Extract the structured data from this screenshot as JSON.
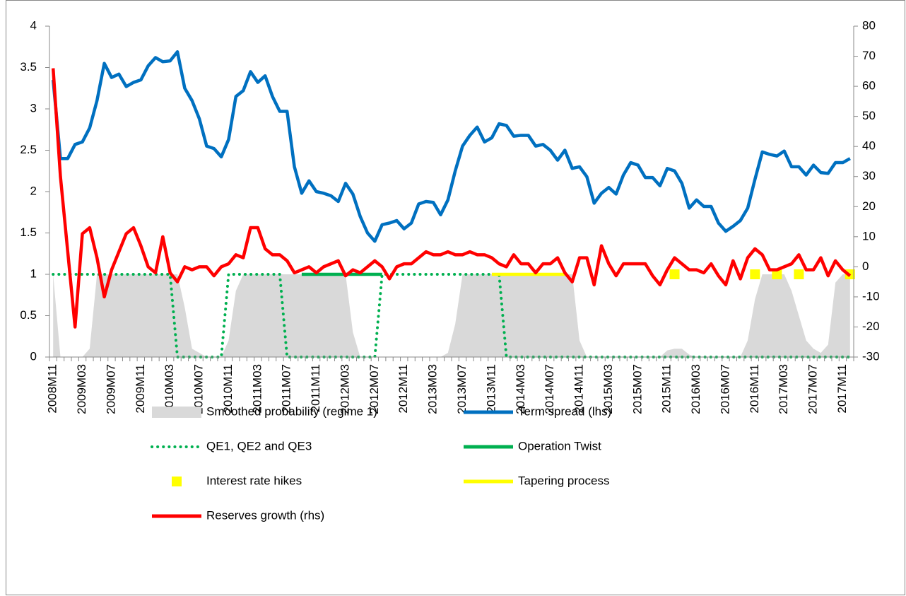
{
  "chart_data": {
    "type": "line",
    "categories": [
      "2008M11",
      null,
      null,
      null,
      "2009M03",
      null,
      null,
      null,
      "2009M07",
      null,
      null,
      null,
      "2009M11",
      null,
      null,
      null,
      "2010M03",
      null,
      null,
      null,
      "2010M07",
      null,
      null,
      null,
      "2010M11",
      null,
      null,
      null,
      "2011M03",
      null,
      null,
      null,
      "2011M07",
      null,
      null,
      null,
      "2011M11",
      null,
      null,
      null,
      "2012M03",
      null,
      null,
      null,
      "2012M07",
      null,
      null,
      null,
      "2012M11",
      null,
      null,
      null,
      "2013M03",
      null,
      null,
      null,
      "2013M07",
      null,
      null,
      null,
      "2013M11",
      null,
      null,
      null,
      "2014M03",
      null,
      null,
      null,
      "2014M07",
      null,
      null,
      null,
      "2014M11",
      null,
      null,
      null,
      "2015M03",
      null,
      null,
      null,
      "2015M07",
      null,
      null,
      null,
      "2015M11",
      null,
      null,
      null,
      "2016M03",
      null,
      null,
      null,
      "2016M07",
      null,
      null,
      null,
      "2016M11",
      null,
      null,
      null,
      "2017M03",
      null,
      null,
      null,
      "2017M07",
      null,
      null,
      null,
      "2017M11",
      null
    ],
    "ylim": [
      0,
      4
    ],
    "yticks": [
      0,
      0.5,
      1,
      1.5,
      2,
      2.5,
      3,
      3.5,
      4
    ],
    "y2lim": [
      -30,
      80
    ],
    "y2ticks": [
      -30,
      -20,
      -10,
      0,
      10,
      20,
      30,
      40,
      50,
      60,
      70,
      80
    ],
    "series": [
      {
        "name": "Smoothed probability (regime 1)",
        "kind": "area",
        "color": "#d9d9d9",
        "values": [
          1,
          0,
          0,
          0,
          0,
          0.1,
          1,
          1,
          1,
          1,
          1,
          1,
          1,
          1,
          1,
          1,
          1,
          1,
          0.6,
          0.1,
          0.05,
          0,
          0,
          0,
          0.2,
          0.8,
          1,
          1,
          1,
          1,
          1,
          1,
          1,
          1,
          1,
          1,
          1,
          1,
          1,
          1,
          1,
          0.3,
          0,
          0,
          0,
          0,
          0,
          0,
          0,
          0,
          0,
          0,
          0,
          0,
          0.05,
          0.4,
          1,
          1,
          1,
          1,
          1,
          1,
          1,
          1,
          1,
          1,
          1,
          1,
          1,
          1,
          1,
          1,
          0.2,
          0,
          0,
          0,
          0,
          0,
          0,
          0,
          0,
          0,
          0,
          0,
          0.08,
          0.1,
          0.1,
          0.03,
          0,
          0,
          0,
          0,
          0,
          0,
          0,
          0.2,
          0.7,
          1,
          1,
          1,
          1,
          0.8,
          0.5,
          0.2,
          0.1,
          0.05,
          0.15,
          0.9,
          1,
          1
        ]
      },
      {
        "name": "Term spread (lhs)",
        "kind": "line",
        "color": "#0070c0",
        "values": [
          3.35,
          2.4,
          2.4,
          2.57,
          2.6,
          2.77,
          3.1,
          3.55,
          3.38,
          3.42,
          3.27,
          3.32,
          3.35,
          3.52,
          3.62,
          3.57,
          3.58,
          3.69,
          3.25,
          3.1,
          2.88,
          2.55,
          2.52,
          2.42,
          2.63,
          3.15,
          3.22,
          3.45,
          3.32,
          3.4,
          3.15,
          2.97,
          2.97,
          2.3,
          1.98,
          2.13,
          2.0,
          1.98,
          1.95,
          1.88,
          2.1,
          1.97,
          1.7,
          1.5,
          1.4,
          1.6,
          1.62,
          1.65,
          1.55,
          1.62,
          1.85,
          1.88,
          1.87,
          1.72,
          1.9,
          2.25,
          2.55,
          2.68,
          2.78,
          2.6,
          2.65,
          2.82,
          2.8,
          2.67,
          2.68,
          2.68,
          2.55,
          2.57,
          2.5,
          2.38,
          2.5,
          2.28,
          2.3,
          2.18,
          1.86,
          1.98,
          2.05,
          1.97,
          2.2,
          2.35,
          2.32,
          2.17,
          2.17,
          2.07,
          2.28,
          2.25,
          2.1,
          1.8,
          1.9,
          1.82,
          1.82,
          1.62,
          1.52,
          1.58,
          1.65,
          1.8,
          2.15,
          2.48,
          2.45,
          2.43,
          2.49,
          2.3,
          2.3,
          2.2,
          2.32,
          2.23,
          2.22,
          2.35,
          2.35,
          2.4
        ]
      },
      {
        "name": "QE1, QE2 and QE3",
        "kind": "dotted",
        "color": "#00b050",
        "values": [
          1,
          1,
          1,
          1,
          1,
          1,
          1,
          1,
          1,
          1,
          1,
          1,
          1,
          1,
          1,
          1,
          1,
          0,
          0,
          0,
          0,
          0,
          0,
          0,
          1,
          1,
          1,
          1,
          1,
          1,
          1,
          1,
          0,
          0,
          0,
          0,
          0,
          0,
          0,
          0,
          0,
          0,
          0,
          0,
          0,
          1,
          1,
          1,
          1,
          1,
          1,
          1,
          1,
          1,
          1,
          1,
          1,
          1,
          1,
          1,
          1,
          1,
          0,
          0,
          0,
          0,
          0,
          0,
          0,
          0,
          0,
          0,
          0,
          0,
          0,
          0,
          0,
          0,
          0,
          0,
          0,
          0,
          0,
          0,
          0,
          0,
          0,
          0,
          0,
          0,
          0,
          0,
          0,
          0,
          0,
          0,
          0,
          0,
          0,
          0,
          0,
          0,
          0,
          0,
          0,
          0,
          0,
          0,
          0,
          0
        ]
      },
      {
        "name": "Operation Twist",
        "kind": "line",
        "color": "#00b050",
        "values": [
          null,
          null,
          null,
          null,
          null,
          null,
          null,
          null,
          null,
          null,
          null,
          null,
          null,
          null,
          null,
          null,
          null,
          null,
          null,
          null,
          null,
          null,
          null,
          null,
          null,
          null,
          null,
          null,
          null,
          null,
          null,
          null,
          null,
          null,
          1,
          1,
          1,
          1,
          1,
          1,
          1,
          1,
          1,
          1,
          1,
          1,
          null,
          null,
          null,
          null,
          null,
          null,
          null,
          null,
          null,
          null,
          null,
          null,
          null,
          null,
          null,
          null,
          null,
          null,
          null,
          null,
          null,
          null,
          null,
          null,
          null,
          null,
          null,
          null,
          null,
          null,
          null,
          null,
          null,
          null,
          null,
          null,
          null,
          null,
          null,
          null,
          null,
          null,
          null,
          null,
          null,
          null,
          null,
          null,
          null,
          null,
          null,
          null,
          null,
          null,
          null,
          null,
          null,
          null,
          null,
          null,
          null,
          null,
          null,
          null
        ]
      },
      {
        "name": "Interest rate hikes",
        "kind": "marker",
        "color": "#ffff00",
        "values": [
          null,
          null,
          null,
          null,
          null,
          null,
          null,
          null,
          null,
          null,
          null,
          null,
          null,
          null,
          null,
          null,
          null,
          null,
          null,
          null,
          null,
          null,
          null,
          null,
          null,
          null,
          null,
          null,
          null,
          null,
          null,
          null,
          null,
          null,
          null,
          null,
          null,
          null,
          null,
          null,
          null,
          null,
          null,
          null,
          null,
          null,
          null,
          null,
          null,
          null,
          null,
          null,
          null,
          null,
          null,
          null,
          null,
          null,
          null,
          null,
          null,
          null,
          null,
          null,
          null,
          null,
          null,
          null,
          null,
          null,
          null,
          null,
          null,
          null,
          null,
          null,
          null,
          null,
          null,
          null,
          null,
          null,
          null,
          null,
          null,
          1,
          null,
          null,
          null,
          null,
          null,
          null,
          null,
          null,
          null,
          null,
          1,
          null,
          null,
          1,
          null,
          null,
          1,
          null,
          null,
          null,
          null,
          null,
          null,
          1
        ]
      },
      {
        "name": "Tapering process",
        "kind": "line",
        "color": "#ffff00",
        "values": [
          null,
          null,
          null,
          null,
          null,
          null,
          null,
          null,
          null,
          null,
          null,
          null,
          null,
          null,
          null,
          null,
          null,
          null,
          null,
          null,
          null,
          null,
          null,
          null,
          null,
          null,
          null,
          null,
          null,
          null,
          null,
          null,
          null,
          null,
          null,
          null,
          null,
          null,
          null,
          null,
          null,
          null,
          null,
          null,
          null,
          null,
          null,
          null,
          null,
          null,
          null,
          null,
          null,
          null,
          null,
          null,
          null,
          null,
          null,
          null,
          1,
          1,
          1,
          1,
          1,
          1,
          1,
          1,
          1,
          1,
          1,
          null,
          null,
          null,
          null,
          null,
          null,
          null,
          null,
          null,
          null,
          null,
          null,
          null,
          null,
          null,
          null,
          null,
          null,
          null,
          null,
          null,
          null,
          null,
          null,
          null,
          null,
          null,
          null,
          null,
          null,
          null,
          null,
          null,
          null,
          null,
          null,
          null,
          null,
          null
        ]
      },
      {
        "name": "Reserves growth (rhs)",
        "kind": "line",
        "color": "#ff0000",
        "axis": "y2",
        "values": [
          66,
          30,
          5,
          -20,
          11,
          13,
          3,
          -10,
          -1,
          5,
          11,
          13,
          7,
          0,
          -2,
          10,
          -2,
          -5,
          0,
          -1,
          0,
          0,
          -3,
          0,
          1,
          4,
          3,
          13,
          13,
          6,
          4,
          4,
          2,
          -2,
          -1,
          0,
          -2,
          0,
          1,
          2,
          -3,
          -1,
          -2,
          0,
          2,
          0,
          -4,
          0,
          1,
          1,
          3,
          5,
          4,
          4,
          5,
          4,
          4,
          5,
          4,
          4,
          3,
          1,
          0,
          4,
          1,
          1,
          -2,
          1,
          1,
          3,
          -2,
          -5,
          3,
          3,
          -6,
          7,
          1,
          -3,
          1,
          1,
          1,
          1,
          -3,
          -6,
          -1,
          3,
          1,
          -1,
          -1,
          -2,
          1,
          -3,
          -6,
          2,
          -4,
          3,
          6,
          4,
          -1,
          -1,
          0,
          1,
          4,
          -1,
          -1,
          3,
          -3,
          2,
          -1,
          -3
        ]
      }
    ]
  }
}
